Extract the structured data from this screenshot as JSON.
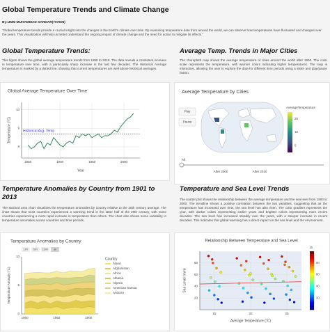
{
  "header": {
    "title": "Global Temperature Trends and Climate Change",
    "author": "By:UMM MUHAMMAD SARDAR(707606)",
    "intro": "\"Global temperature trends provide a crucial insight into the changes in the Earth's climate over time. By examining temperature data from around the world, we can observe how temperatures have fluctuated and changed over the years. This visualization will help us better understand the ongoing impact of climate change and the need for action to mitigate its effects.\""
  },
  "sections": [
    {
      "heading": "Global Temperature Trends:",
      "text": "This figure shows the global average temperature trends from 1850 to 2015. The data reveals a consistent increase in temperature over time, with a particularly sharp increase in the last few decades. The Historical Average temperature is marked by a dotted line, showing that current temperatures are well above historical averages."
    },
    {
      "heading": "Average Temp. Trends in Major Cities",
      "text": "The choropleth map shows the average temperature of cities around the world after 1900. The color scale represents the temperature, with warmer colors indicating higher temperatures. The map is interactive, allowing the user to explore the data for different time periods using a slider and play/pause button."
    },
    {
      "heading": "Temperature Anomalies by Country from 1901 to 2013",
      "text": "The stacked area chart visualizes the temperature anomalies by country relative to the 20th century average. The chart shows that most countries experienced a warming trend in the latter half of the 20th century, with some countries experiencing a more rapid increase in temperature than others. The chart also shows some variability in temperature anomalies across countries and time periods."
    },
    {
      "heading": "Temperature and Sea Level Trends",
      "text": "The scatter plot shows the relationship between the average temperature and the sea level from 1900 to 2000. The trendline shows a positive correlation between the two variables, suggesting that as the temperature has increased over time, the sea level has also risen. The color gradient represents the year, with darker colors representing earlier years and brighter colors representing more recent decades. The sea level has increased steadily over the years, with a steeper increase in recent decades. This indicates that global warming has a direct impact on the sea level and the environment."
    }
  ],
  "chart_data": [
    {
      "type": "line",
      "title": "Global Average Temperature Over Time",
      "x_label": "Year",
      "y_label": "Temperature (°C)",
      "x": [
        1850,
        1855,
        1860,
        1865,
        1870,
        1875,
        1880,
        1885,
        1890,
        1895,
        1900,
        1905,
        1910,
        1915,
        1920,
        1925,
        1930,
        1935,
        1940,
        1945,
        1950,
        1955,
        1960,
        1965,
        1970,
        1975,
        1980,
        1985,
        1990,
        1995,
        2000,
        2005,
        2010,
        2015
      ],
      "series": [
        {
          "color": "#2e8b57",
          "values": [
            8.1,
            7.9,
            8.0,
            8.2,
            8.3,
            7.9,
            8.2,
            8.1,
            8.5,
            8.3,
            8.1,
            8.0,
            8.2,
            8.3,
            8.2,
            8.6,
            8.5,
            8.7,
            8.6,
            8.7,
            8.5,
            8.6,
            8.7,
            8.5,
            8.6,
            8.6,
            8.7,
            8.9,
            8.8,
            9.1,
            9.3,
            9.5,
            9.6,
            9.8
          ]
        }
      ],
      "reference": {
        "value": 8.7,
        "label": "Historical Avg. Temp",
        "color": "#3a3aff"
      },
      "xlim": [
        1840,
        2025
      ],
      "xticks": [
        1850,
        1900,
        1950,
        2000
      ],
      "ylim": [
        7.4,
        10.4
      ],
      "yticks": [
        8,
        9,
        10
      ],
      "grid": true
    },
    {
      "type": "map",
      "title": "Average Temperature by Cities",
      "buttons": [
        "Play",
        "Pause"
      ],
      "slider_labels": [
        "All",
        "After 2000",
        "After 2010"
      ],
      "colorbar_title": "AverageTemperature",
      "colorbar_lim": [
        0,
        30
      ],
      "colorbar_ticks": [
        5,
        15,
        25
      ]
    },
    {
      "type": "area",
      "title": "Temperature Anomalies by Country",
      "y_label": "Temperature Anomaly (°C)",
      "buttons": [
        "10Y",
        "50Y",
        "100Y",
        "all"
      ],
      "legend_title": "Country",
      "x": [
        1900,
        1910,
        1920,
        1930,
        1940,
        1950,
        1960,
        1970,
        1980,
        1990,
        2000,
        2010
      ],
      "series": [
        {
          "name": "Åland",
          "color": "#f3e26a",
          "values": [
            1.0,
            1.2,
            0.9,
            1.1,
            1.0,
            1.3,
            0.9,
            1.1,
            1.2,
            1.0,
            1.3,
            1.1
          ]
        },
        {
          "name": "Afghanistan",
          "color": "#e2cc4e",
          "values": [
            0.9,
            1.1,
            1.0,
            1.2,
            0.8,
            1.0,
            1.1,
            0.9,
            1.2,
            1.1,
            1.0,
            1.2
          ]
        },
        {
          "name": "Africa",
          "color": "#f8e48c",
          "values": [
            1.1,
            0.9,
            1.2,
            1.0,
            1.1,
            0.9,
            1.0,
            1.2,
            1.0,
            1.1,
            1.2,
            1.0
          ]
        },
        {
          "name": "Albania",
          "color": "#d6c45c",
          "values": [
            1.0,
            1.0,
            1.1,
            0.9,
            1.2,
            1.1,
            1.0,
            1.0,
            1.1,
            1.2,
            1.0,
            1.1
          ]
        },
        {
          "name": "Algeria",
          "color": "#efd47a",
          "values": [
            1.2,
            0.9,
            1.0,
            1.1,
            1.0,
            1.2,
            1.1,
            1.0,
            0.9,
            1.1,
            1.1,
            1.2
          ]
        },
        {
          "name": "American Samoa",
          "color": "#cfd488",
          "values": [
            0.8,
            1.1,
            0.9,
            1.0,
            1.1,
            0.9,
            1.2,
            1.1,
            1.0,
            0.9,
            1.2,
            1.1
          ]
        },
        {
          "name": "Andorra",
          "color": "#f6eca4",
          "values": [
            1.1,
            1.0,
            1.2,
            0.9,
            1.0,
            1.1,
            0.9,
            1.2,
            1.1,
            1.0,
            1.1,
            1.3
          ]
        }
      ],
      "xlim": [
        1895,
        2015
      ],
      "xticks": [
        1900,
        1950,
        2000
      ],
      "ylim": [
        0,
        10
      ],
      "yticks": [
        0,
        5,
        10
      ]
    },
    {
      "type": "scatter",
      "title": "Relationship Between Temperature and Sea Level",
      "x_label": "Average Temperature (°C)",
      "y_label": "Sea Level (mm)",
      "x": [
        14.2,
        14.8,
        15.3,
        15.9,
        14.5,
        15.1,
        15.7,
        14.3,
        15.0,
        15.5,
        16.0,
        14.7,
        18.1,
        18.7,
        19.2,
        19.8,
        20.3,
        18.4,
        19.0,
        19.6,
        20.1,
        18.9,
        19.4,
        20.0,
        21.3,
        21.8,
        22.4,
        22.9,
        23.4,
        21.5,
        22.1,
        22.7,
        23.2,
        21.9,
        22.5,
        23.0,
        24.3,
        24.8,
        25.3,
        25.8,
        26.2,
        24.5,
        25.1,
        25.6,
        24.9,
        25.4,
        26.0,
        24.7
      ],
      "y": [
        92,
        80,
        71,
        64,
        55,
        48,
        40,
        33,
        25,
        18,
        12,
        86,
        88,
        76,
        68,
        59,
        51,
        45,
        37,
        29,
        21,
        14,
        83,
        62,
        90,
        79,
        70,
        61,
        53,
        44,
        36,
        27,
        19,
        12,
        85,
        58,
        91,
        82,
        73,
        66,
        57,
        49,
        41,
        34,
        26,
        17,
        13,
        77
      ],
      "trendline": {
        "x": [
          13,
          27
        ],
        "y": [
          44,
          48
        ],
        "color": "#e0403a"
      },
      "colorbar_title": "dt",
      "colorbar_lim": [
        0,
        100
      ],
      "colorbar_ticks": [
        20,
        40,
        60,
        80
      ],
      "xlim": [
        13,
        27
      ],
      "xticks": [
        15,
        20,
        25
      ],
      "ylim": [
        0,
        100
      ],
      "yticks": [
        20,
        40,
        60,
        80
      ],
      "grid": true
    }
  ]
}
